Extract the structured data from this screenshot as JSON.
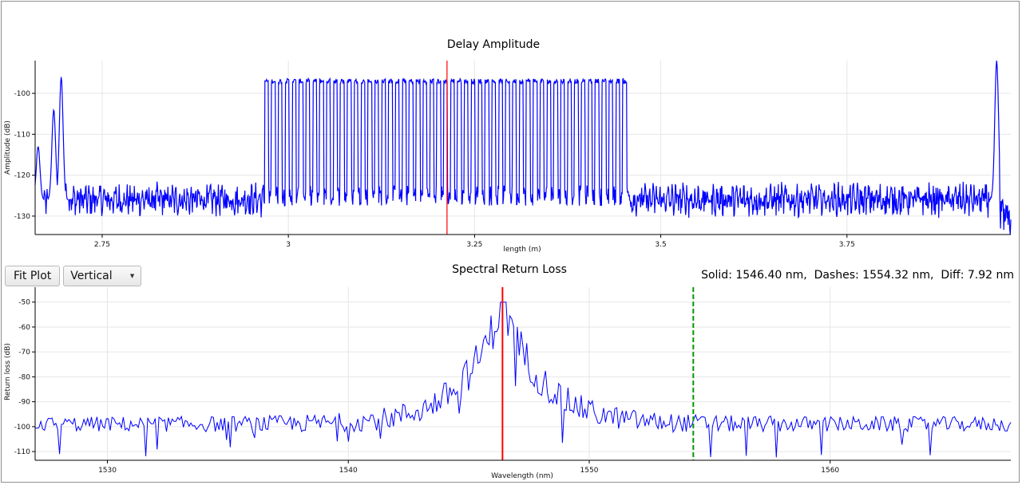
{
  "toolbar": {
    "fit_button_label": "Fit Plot",
    "mode_select_value": "Vertical"
  },
  "readout": {
    "text": "Solid: 1546.40 nm,  Dashes: 1554.32 nm,  Diff: 7.92 nm"
  },
  "chart_data": [
    {
      "type": "line",
      "title": "Delay Amplitude",
      "xlabel": "length (m)",
      "ylabel": "Amplitude (dB)",
      "xlim": [
        2.66,
        3.97
      ],
      "ylim": [
        -134.5,
        -92
      ],
      "xticks": [
        2.75,
        3,
        3.25,
        3.5,
        3.75
      ],
      "xtick_labels": [
        "2.75",
        "3",
        "3.25",
        "3.5",
        "3.75"
      ],
      "yticks": [
        -130,
        -120,
        -110,
        -100
      ],
      "ytick_labels": [
        "-130",
        "-120",
        "-110",
        "-100"
      ],
      "grid": true,
      "series": [
        {
          "color": "#0000ff",
          "noise_floor": -126,
          "peaks": [
            {
              "x": 2.664,
              "y": -113
            },
            {
              "x": 2.685,
              "y": -104
            },
            {
              "x": 2.695,
              "y": -96
            },
            {
              "x": 3.951,
              "y": -92
            }
          ],
          "grating": {
            "x_start": 2.968,
            "x_end": 3.458,
            "y_top": -97,
            "y_bottom": -125,
            "teeth": 53
          }
        }
      ],
      "markers": [
        {
          "type": "vline",
          "x": 3.213,
          "color": "#ff0000",
          "style": "solid"
        }
      ]
    },
    {
      "type": "line",
      "title": "Spectral Return Loss",
      "xlabel": "Wavelength (nm)",
      "ylabel": "Return loss (dB)",
      "xlim": [
        1527,
        1567.5
      ],
      "ylim": [
        -113.5,
        -44
      ],
      "xticks": [
        1530,
        1540,
        1550,
        1560
      ],
      "xtick_labels": [
        "1530",
        "1540",
        "1550",
        "1560"
      ],
      "yticks": [
        -110,
        -100,
        -90,
        -80,
        -70,
        -60,
        -50
      ],
      "ytick_labels": [
        "-110",
        "-100",
        "-90",
        "-80",
        "-70",
        "-60",
        "-50"
      ],
      "grid": true,
      "series": [
        {
          "color": "#0000ff",
          "baseline": -99,
          "peak": {
            "x": 1546.4,
            "y": -50
          }
        }
      ],
      "markers": [
        {
          "type": "vline",
          "x": 1546.4,
          "color": "#ff0000",
          "style": "solid"
        },
        {
          "type": "vline",
          "x": 1554.32,
          "color": "#009900",
          "style": "dashed"
        }
      ]
    }
  ]
}
